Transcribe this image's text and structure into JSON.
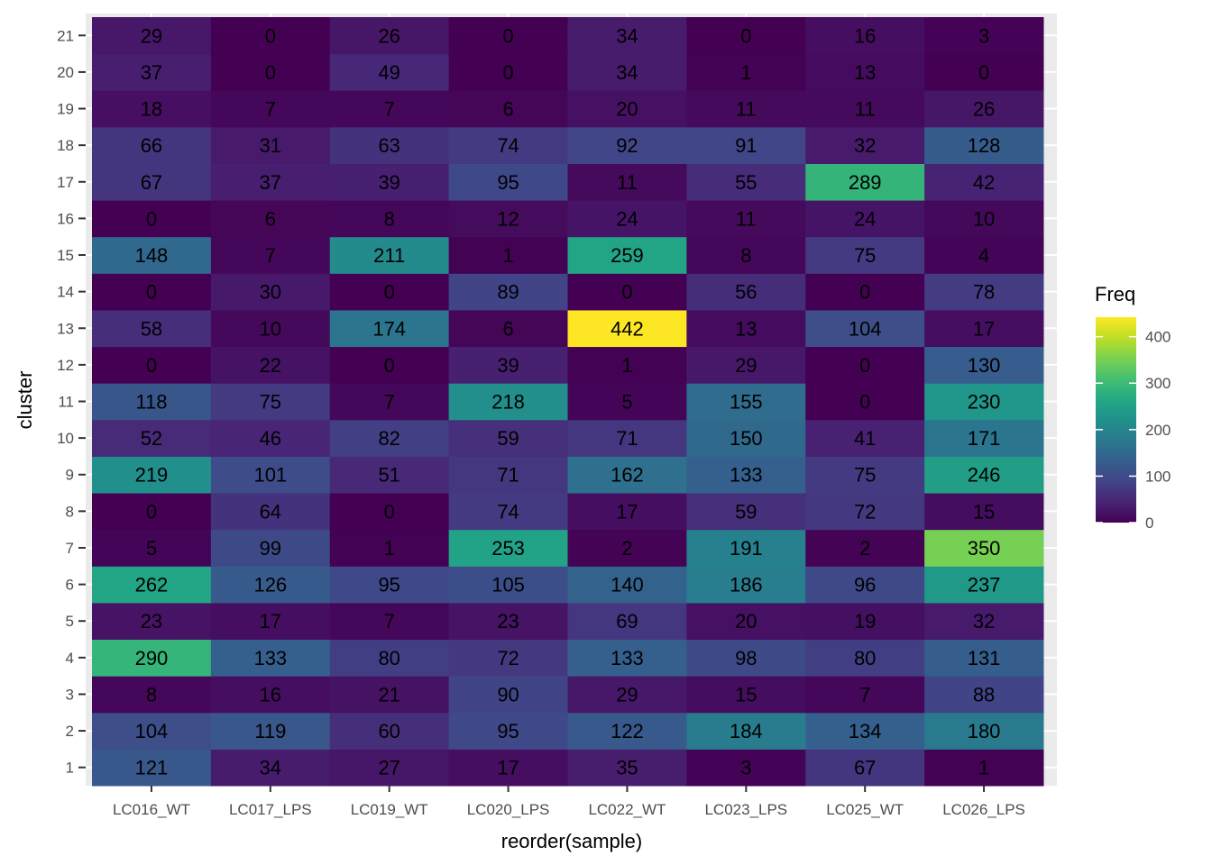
{
  "chart_data": {
    "type": "heatmap",
    "xlabel": "reorder(sample)",
    "ylabel": "cluster",
    "x_categories": [
      "LC016_WT",
      "LC017_LPS",
      "LC019_WT",
      "LC020_LPS",
      "LC022_WT",
      "LC023_LPS",
      "LC025_WT",
      "LC026_LPS"
    ],
    "y_categories": [
      "1",
      "2",
      "3",
      "4",
      "5",
      "6",
      "7",
      "8",
      "9",
      "10",
      "11",
      "12",
      "13",
      "14",
      "15",
      "16",
      "17",
      "18",
      "19",
      "20",
      "21"
    ],
    "values": [
      [
        121,
        34,
        27,
        17,
        35,
        3,
        67,
        1
      ],
      [
        104,
        119,
        60,
        95,
        122,
        184,
        134,
        180
      ],
      [
        8,
        16,
        21,
        90,
        29,
        15,
        7,
        88
      ],
      [
        290,
        133,
        80,
        72,
        133,
        98,
        80,
        131
      ],
      [
        23,
        17,
        7,
        23,
        69,
        20,
        19,
        32
      ],
      [
        262,
        126,
        95,
        105,
        140,
        186,
        96,
        237
      ],
      [
        5,
        99,
        1,
        253,
        2,
        191,
        2,
        350
      ],
      [
        0,
        64,
        0,
        74,
        17,
        59,
        72,
        15
      ],
      [
        219,
        101,
        51,
        71,
        162,
        133,
        75,
        246
      ],
      [
        52,
        46,
        82,
        59,
        71,
        150,
        41,
        171
      ],
      [
        118,
        75,
        7,
        218,
        5,
        155,
        0,
        230
      ],
      [
        0,
        22,
        0,
        39,
        1,
        29,
        0,
        130
      ],
      [
        58,
        10,
        174,
        6,
        442,
        13,
        104,
        17
      ],
      [
        0,
        30,
        0,
        89,
        0,
        56,
        0,
        78
      ],
      [
        148,
        7,
        211,
        1,
        259,
        8,
        75,
        4
      ],
      [
        0,
        6,
        8,
        12,
        24,
        11,
        24,
        10
      ],
      [
        67,
        37,
        39,
        95,
        11,
        55,
        289,
        42
      ],
      [
        66,
        31,
        63,
        74,
        92,
        91,
        32,
        128
      ],
      [
        18,
        7,
        7,
        6,
        20,
        11,
        11,
        26
      ],
      [
        37,
        0,
        49,
        0,
        34,
        1,
        13,
        0
      ],
      [
        29,
        0,
        26,
        0,
        34,
        0,
        16,
        3
      ]
    ],
    "color_scale": "viridis",
    "value_range": [
      0,
      442
    ],
    "legend": {
      "title": "Freq",
      "ticks": [
        0,
        100,
        200,
        300,
        400
      ],
      "placement": "right"
    },
    "background": "#ebebeb",
    "grid": true
  }
}
